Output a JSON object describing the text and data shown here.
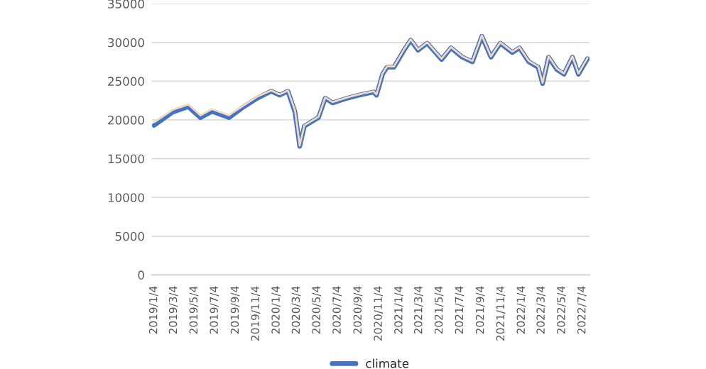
{
  "chart_data": {
    "type": "line",
    "x": [
      "2019-01-04",
      "2019-02-28",
      "2019-04-16",
      "2019-05-22",
      "2019-06-25",
      "2019-08-15",
      "2019-09-25",
      "2019-11-07",
      "2019-12-19",
      "2020-01-13",
      "2020-02-07",
      "2020-02-28",
      "2020-03-13",
      "2020-03-27",
      "2020-05-08",
      "2020-05-28",
      "2020-06-19",
      "2020-08-01",
      "2020-09-06",
      "2020-10-19",
      "2020-10-28",
      "2020-11-15",
      "2020-11-28",
      "2020-12-19",
      "2021-01-18",
      "2021-02-07",
      "2021-03-01",
      "2021-03-28",
      "2021-05-10",
      "2021-06-07",
      "2021-07-11",
      "2021-08-10",
      "2021-09-07",
      "2021-10-04",
      "2021-11-01",
      "2021-12-07",
      "2021-12-28",
      "2022-01-25",
      "2022-02-22",
      "2022-03-07",
      "2022-03-25",
      "2022-04-19",
      "2022-05-10",
      "2022-06-04",
      "2022-06-22",
      "2022-07-19"
    ],
    "series": [
      {
        "name": "climate",
        "color": "#4472c4",
        "values": [
          19300,
          21000,
          21700,
          20300,
          21100,
          20300,
          21600,
          22800,
          23700,
          23200,
          23700,
          21000,
          16600,
          19200,
          20300,
          22800,
          22200,
          22800,
          23200,
          23600,
          23200,
          25900,
          26800,
          26800,
          29000,
          30300,
          29000,
          29900,
          27800,
          29300,
          28100,
          27500,
          30800,
          28100,
          29900,
          28700,
          29300,
          27500,
          26800,
          24700,
          28100,
          26500,
          25900,
          28100,
          25900,
          27900
        ]
      },
      {
        "color": "#f4d9b8",
        "values": [
          19700,
          21300,
          22000,
          20600,
          21400,
          20600,
          21800,
          23000,
          23800,
          23300,
          23800,
          21200,
          16700,
          19300,
          20400,
          22900,
          22300,
          22900,
          23300,
          23700,
          23300,
          26000,
          26900,
          26900,
          29100,
          30400,
          29100,
          30000,
          27900,
          29400,
          28200,
          27600,
          30900,
          28200,
          30000,
          28800,
          29400,
          27600,
          26900,
          24800,
          28200,
          26600,
          26000,
          28200,
          26000,
          28000
        ]
      }
    ],
    "xlim": [
      "2018-12-28",
      "2022-07-25"
    ],
    "xticks": [
      {
        "value": "2019-01-04",
        "label": "2019/1/4"
      },
      {
        "value": "2019-03-04",
        "label": "2019/3/4"
      },
      {
        "value": "2019-05-04",
        "label": "2019/5/4"
      },
      {
        "value": "2019-07-04",
        "label": "2019/7/4"
      },
      {
        "value": "2019-09-04",
        "label": "2019/9/4"
      },
      {
        "value": "2019-11-04",
        "label": "2019/11/4"
      },
      {
        "value": "2020-01-04",
        "label": "2020/1/4"
      },
      {
        "value": "2020-03-04",
        "label": "2020/3/4"
      },
      {
        "value": "2020-05-04",
        "label": "2020/5/4"
      },
      {
        "value": "2020-07-04",
        "label": "2020/7/4"
      },
      {
        "value": "2020-09-04",
        "label": "2020/9/4"
      },
      {
        "value": "2020-11-04",
        "label": "2020/11/4"
      },
      {
        "value": "2021-01-04",
        "label": "2021/1/4"
      },
      {
        "value": "2021-03-04",
        "label": "2021/3/4"
      },
      {
        "value": "2021-05-04",
        "label": "2021/5/4"
      },
      {
        "value": "2021-07-04",
        "label": "2021/7/4"
      },
      {
        "value": "2021-09-04",
        "label": "2021/9/4"
      },
      {
        "value": "2021-11-04",
        "label": "2021/11/4"
      },
      {
        "value": "2022-01-04",
        "label": "2022/1/4"
      },
      {
        "value": "2022-03-04",
        "label": "2022/3/4"
      },
      {
        "value": "2022-05-04",
        "label": "2022/5/4"
      },
      {
        "value": "2022-07-04",
        "label": "2022/7/4"
      }
    ],
    "ylim": [
      0,
      35000
    ],
    "yticks": [
      0,
      5000,
      10000,
      15000,
      20000,
      25000,
      30000,
      35000
    ],
    "grid": "y",
    "legend": "bottom",
    "line_style": "solid",
    "marker": "none"
  }
}
